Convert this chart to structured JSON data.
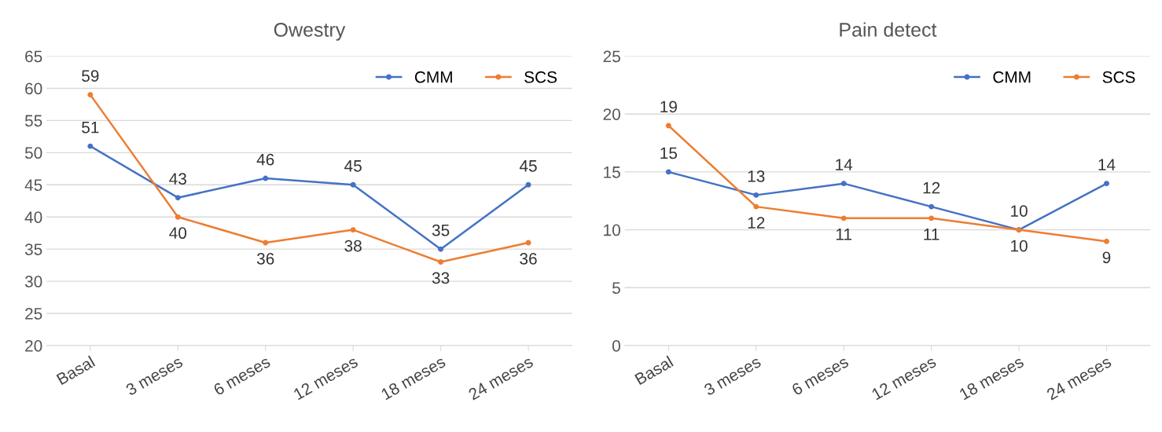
{
  "chart_data": [
    {
      "type": "line",
      "title": "Owestry",
      "categories": [
        "Basal",
        "3 meses",
        "6 meses",
        "12 meses",
        "18 meses",
        "24 meses"
      ],
      "series": [
        {
          "name": "CMM",
          "color": "#4472c4",
          "values": [
            51,
            43,
            46,
            45,
            35,
            45
          ]
        },
        {
          "name": "SCS",
          "color": "#ed7d31",
          "values": [
            59,
            40,
            36,
            38,
            33,
            36
          ]
        }
      ],
      "ylim": [
        20,
        65
      ],
      "yticks": [
        20,
        25,
        30,
        35,
        40,
        45,
        50,
        55,
        60,
        65
      ],
      "grid": "y",
      "legend": "top right",
      "data_labels": true,
      "marker": "circle"
    },
    {
      "type": "line",
      "title": "Pain detect",
      "categories": [
        "Basal",
        "3 meses",
        "6 meses",
        "12 meses",
        "18 meses",
        "24 meses"
      ],
      "series": [
        {
          "name": "CMM",
          "color": "#4472c4",
          "values": [
            15,
            13,
            14,
            12,
            10,
            14
          ]
        },
        {
          "name": "SCS",
          "color": "#ed7d31",
          "values": [
            19,
            12,
            11,
            11,
            10,
            9
          ]
        }
      ],
      "ylim": [
        0,
        25
      ],
      "yticks": [
        0,
        5,
        10,
        15,
        20,
        25
      ],
      "grid": "y",
      "legend": "top right",
      "data_labels": true,
      "marker": "circle"
    }
  ]
}
